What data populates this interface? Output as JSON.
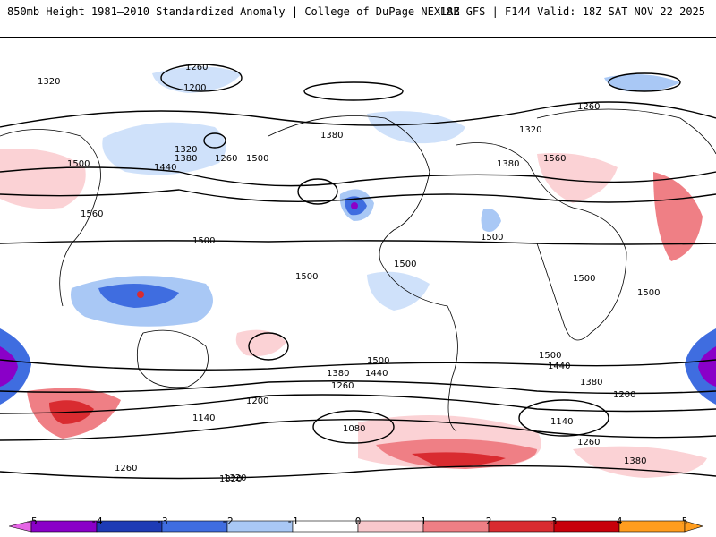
{
  "header": {
    "left": "850mb Height 1981–2010 Standardized Anomaly | College of DuPage NEXLAB",
    "right": "18Z GFS | F144 Valid: 18Z SAT NOV 22 2025"
  },
  "contour_labels": [
    "1320",
    "1260",
    "1200",
    "1500",
    "1440",
    "1380",
    "1560",
    "1320",
    "1260",
    "1380",
    "1500",
    "1140",
    "1080",
    "1200",
    "1320",
    "1260",
    "1380",
    "1440",
    "1500",
    "1560",
    "1500",
    "1500",
    "1500",
    "1500",
    "1500",
    "1380",
    "1260",
    "1320",
    "1200",
    "1260",
    "1140",
    "1380",
    "1500",
    "1440",
    "1500",
    "1260",
    "1320",
    "1380"
  ],
  "colorbar": {
    "ticks": [
      "-5",
      "-4",
      "-3",
      "-2",
      "-1",
      "0",
      "1",
      "2",
      "3",
      "4",
      "5"
    ],
    "colors": [
      "#e566e5",
      "#8a00c8",
      "#1e3bb5",
      "#3f6de0",
      "#a9c8f5",
      "#ffffff",
      "#f8c8cc",
      "#ef7f85",
      "#d92b30",
      "#c8000a",
      "#ff9d1e"
    ]
  },
  "legend_colors": {
    "strong_negative": "#1e3bb5",
    "mid_negative": "#3f6de0",
    "weak_negative": "#cfe1fa",
    "weak_positive": "#fbd2d5",
    "mid_positive": "#ef7f85",
    "strong_positive": "#d92b30",
    "contour": "#000000"
  }
}
